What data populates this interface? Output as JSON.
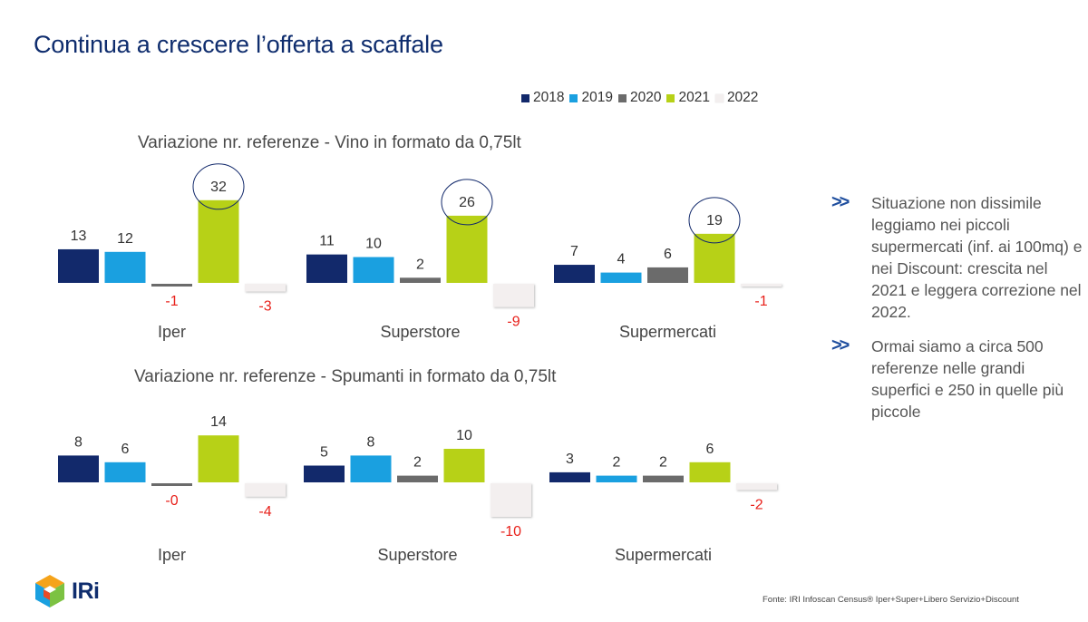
{
  "title": "Continua a crescere l’offerta a scaffale",
  "legend": [
    {
      "label": "2018",
      "color": "#12296b"
    },
    {
      "label": "2019",
      "color": "#1aa0e0"
    },
    {
      "label": "2020",
      "color": "#6b6b6b"
    },
    {
      "label": "2021",
      "color": "#b7d117"
    },
    {
      "label": "2022",
      "color": "#f3efef"
    }
  ],
  "chart_data": [
    {
      "type": "bar",
      "title": "Variazione nr. referenze - Vino in formato da 0,75lt",
      "categories": [
        "Iper",
        "Superstore",
        "Supermercati"
      ],
      "series": [
        {
          "name": "2018",
          "values": [
            13,
            11,
            7
          ]
        },
        {
          "name": "2019",
          "values": [
            12,
            10,
            4
          ]
        },
        {
          "name": "2020",
          "values": [
            -1,
            2,
            6
          ]
        },
        {
          "name": "2021",
          "values": [
            32,
            26,
            19
          ]
        },
        {
          "name": "2022",
          "values": [
            -3,
            -9,
            -1
          ]
        }
      ],
      "labels": [
        [
          "13",
          "12",
          "-1",
          "32",
          "-3"
        ],
        [
          "11",
          "10",
          "2",
          "26",
          "-9"
        ],
        [
          "7",
          "4",
          "6",
          "19",
          "-1"
        ]
      ],
      "highlighted_series": "2021",
      "grid": false
    },
    {
      "type": "bar",
      "title": "Variazione nr. referenze  - Spumanti in formato da 0,75lt",
      "categories": [
        "Iper",
        "Superstore",
        "Supermercati"
      ],
      "series": [
        {
          "name": "2018",
          "values": [
            8,
            5,
            3
          ]
        },
        {
          "name": "2019",
          "values": [
            6,
            8,
            2
          ]
        },
        {
          "name": "2020",
          "values": [
            -0.2,
            2,
            2
          ]
        },
        {
          "name": "2021",
          "values": [
            14,
            10,
            6
          ]
        },
        {
          "name": "2022",
          "values": [
            -4,
            -10,
            -2
          ]
        }
      ],
      "labels": [
        [
          "8",
          "6",
          "-0",
          "14",
          "-4"
        ],
        [
          "5",
          "8",
          "2",
          "10",
          "-10"
        ],
        [
          "3",
          "2",
          "2",
          "6",
          "-2"
        ]
      ],
      "grid": false
    }
  ],
  "bullets": [
    "Situazione non dissimile leggiamo nei piccoli supermercati (inf. ai 100mq) e nei Discount: crescita nel 2021 e leggera correzione nel 2022.",
    "Ormai siamo a circa 500 referenze nelle grandi superfici e 250 in quelle più piccole"
  ],
  "bullet_icon": "double-chevron-right-icon",
  "source": "Fonte: IRI  Infoscan Census®  Iper+Super+Libero Servizio+Discount",
  "logo": {
    "text": "IRi",
    "icon": "iri-cube-logo"
  }
}
